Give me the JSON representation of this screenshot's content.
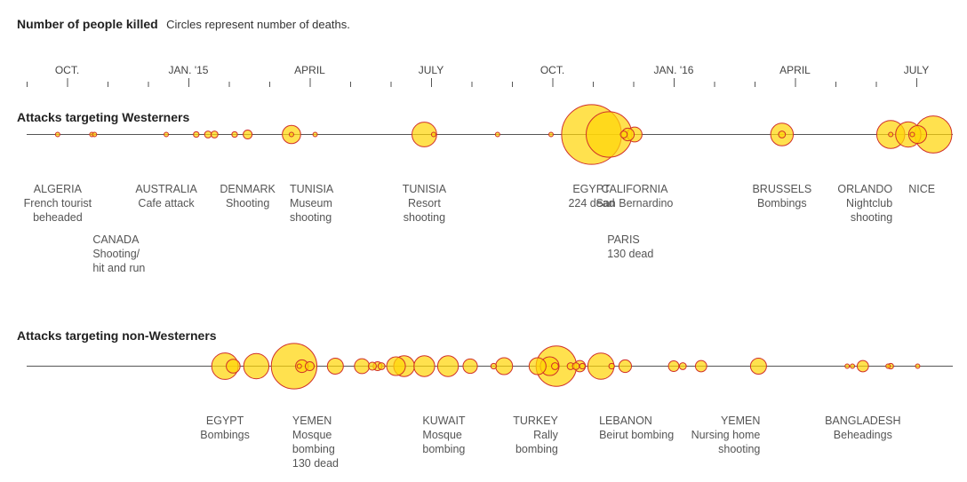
{
  "chart_data": {
    "type": "timeline-bubble",
    "title": "Number of people killed",
    "subtitle": "Circles represent number of deaths.",
    "axis": {
      "start_month": "2014-09",
      "end_month": "2016-07",
      "labels": [
        {
          "month": "2014-10",
          "text": "OCT."
        },
        {
          "month": "2015-01",
          "text": "JAN. '15"
        },
        {
          "month": "2015-04",
          "text": "APRIL"
        },
        {
          "month": "2015-07",
          "text": "JULY"
        },
        {
          "month": "2015-10",
          "text": "OCT."
        },
        {
          "month": "2016-01",
          "text": "JAN. '16"
        },
        {
          "month": "2016-04",
          "text": "APRIL"
        },
        {
          "month": "2016-07",
          "text": "JULY"
        }
      ]
    },
    "series": [
      {
        "name": "Attacks targeting Westerners",
        "events": [
          {
            "date": "2014-09-24",
            "deaths": 1
          },
          {
            "date": "2014-10-20",
            "deaths": 1
          },
          {
            "date": "2014-10-22",
            "deaths": 1
          },
          {
            "date": "2014-12-15",
            "deaths": 1
          },
          {
            "date": "2015-01-07",
            "deaths": 2
          },
          {
            "date": "2015-01-16",
            "deaths": 3
          },
          {
            "date": "2015-01-21",
            "deaths": 3
          },
          {
            "date": "2015-02-05",
            "deaths": 2
          },
          {
            "date": "2015-02-14",
            "deaths": 5
          },
          {
            "date": "2015-03-18",
            "deaths": 1
          },
          {
            "date": "2015-03-18",
            "deaths": 21
          },
          {
            "date": "2015-04-05",
            "deaths": 1
          },
          {
            "date": "2015-06-26",
            "deaths": 38
          },
          {
            "date": "2015-07-03",
            "deaths": 1
          },
          {
            "date": "2015-08-21",
            "deaths": 1
          },
          {
            "date": "2015-09-30",
            "deaths": 1
          },
          {
            "date": "2015-10-31",
            "deaths": 224
          },
          {
            "date": "2015-11-13",
            "deaths": 130
          },
          {
            "date": "2015-11-24",
            "deaths": 3
          },
          {
            "date": "2015-11-27",
            "deaths": 10
          },
          {
            "date": "2015-12-02",
            "deaths": 14
          },
          {
            "date": "2016-03-22",
            "deaths": 32
          },
          {
            "date": "2016-03-22",
            "deaths": 3
          },
          {
            "date": "2016-06-12",
            "deaths": 49
          },
          {
            "date": "2016-06-12",
            "deaths": 1
          },
          {
            "date": "2016-06-25",
            "deaths": 40
          },
          {
            "date": "2016-06-28",
            "deaths": 1
          },
          {
            "date": "2016-07-02",
            "deaths": 20
          },
          {
            "date": "2016-07-14",
            "deaths": 86
          }
        ],
        "annotations": [
          {
            "date": "2014-09-24",
            "lines": [
              "ALGERIA",
              "French tourist",
              "beheaded"
            ],
            "row": 0,
            "align": "middle"
          },
          {
            "date": "2014-10-22",
            "lines": [
              "CANADA",
              "Shooting/",
              "hit and run"
            ],
            "row": 1,
            "align": "start"
          },
          {
            "date": "2014-12-15",
            "lines": [
              "AUSTRALIA",
              "Cafe attack"
            ],
            "row": 0,
            "align": "middle"
          },
          {
            "date": "2015-02-14",
            "lines": [
              "DENMARK",
              "Shooting"
            ],
            "row": 0,
            "align": "middle"
          },
          {
            "date": "2015-03-18",
            "lines": [
              "TUNISIA",
              "Museum",
              "shooting"
            ],
            "row": 0,
            "align": "start"
          },
          {
            "date": "2015-06-26",
            "lines": [
              "TUNISIA",
              "Resort",
              "shooting"
            ],
            "row": 0,
            "align": "middle"
          },
          {
            "date": "2015-10-31",
            "lines": [
              "EGYPT",
              "224 dead"
            ],
            "row": 0,
            "align": "middle"
          },
          {
            "date": "2015-11-13",
            "lines": [
              "PARIS",
              "130 dead"
            ],
            "row": 1,
            "align": "start"
          },
          {
            "date": "2015-12-02",
            "lines": [
              "CALIFORNIA",
              "San Bernardino"
            ],
            "row": 0,
            "align": "middle"
          },
          {
            "date": "2016-03-22",
            "lines": [
              "BRUSSELS",
              "Bombings"
            ],
            "row": 0,
            "align": "middle"
          },
          {
            "date": "2016-06-12",
            "lines": [
              "ORLANDO",
              "Nightclub",
              "shooting"
            ],
            "row": 0,
            "align": "end"
          },
          {
            "date": "2016-07-14",
            "lines": [
              "NICE"
            ],
            "row": 0,
            "align": "end"
          }
        ]
      },
      {
        "name": "Attacks targeting non-Westerners",
        "events": [
          {
            "date": "2015-01-29",
            "deaths": 44
          },
          {
            "date": "2015-02-04",
            "deaths": 12
          },
          {
            "date": "2015-02-20",
            "deaths": 40
          },
          {
            "date": "2015-03-20",
            "deaths": 130
          },
          {
            "date": "2015-03-24",
            "deaths": 1
          },
          {
            "date": "2015-03-26",
            "deaths": 10
          },
          {
            "date": "2015-04-01",
            "deaths": 5
          },
          {
            "date": "2015-04-20",
            "deaths": 16
          },
          {
            "date": "2015-05-10",
            "deaths": 14
          },
          {
            "date": "2015-05-18",
            "deaths": 4
          },
          {
            "date": "2015-05-22",
            "deaths": 5
          },
          {
            "date": "2015-05-25",
            "deaths": 3
          },
          {
            "date": "2015-06-05",
            "deaths": 22
          },
          {
            "date": "2015-06-11",
            "deaths": 27
          },
          {
            "date": "2015-06-26",
            "deaths": 27
          },
          {
            "date": "2015-07-14",
            "deaths": 27
          },
          {
            "date": "2015-07-31",
            "deaths": 13
          },
          {
            "date": "2015-08-18",
            "deaths": 2
          },
          {
            "date": "2015-08-26",
            "deaths": 18
          },
          {
            "date": "2015-09-20",
            "deaths": 18
          },
          {
            "date": "2015-09-29",
            "deaths": 22
          },
          {
            "date": "2015-10-03",
            "deaths": 3
          },
          {
            "date": "2015-10-04",
            "deaths": 102
          },
          {
            "date": "2015-10-15",
            "deaths": 3
          },
          {
            "date": "2015-10-19",
            "deaths": 3
          },
          {
            "date": "2015-10-22",
            "deaths": 8
          },
          {
            "date": "2015-10-24",
            "deaths": 2
          },
          {
            "date": "2015-11-07",
            "deaths": 43
          },
          {
            "date": "2015-11-15",
            "deaths": 2
          },
          {
            "date": "2015-11-25",
            "deaths": 10
          },
          {
            "date": "2016-01-01",
            "deaths": 7
          },
          {
            "date": "2016-01-08",
            "deaths": 3
          },
          {
            "date": "2016-01-22",
            "deaths": 8
          },
          {
            "date": "2016-03-04",
            "deaths": 16
          },
          {
            "date": "2016-05-10",
            "deaths": 1
          },
          {
            "date": "2016-05-14",
            "deaths": 1
          },
          {
            "date": "2016-05-22",
            "deaths": 8
          },
          {
            "date": "2016-06-10",
            "deaths": 1
          },
          {
            "date": "2016-06-12",
            "deaths": 2
          },
          {
            "date": "2016-07-02",
            "deaths": 1
          }
        ],
        "annotations": [
          {
            "date": "2015-01-29",
            "lines": [
              "EGYPT",
              "Bombings"
            ],
            "row": 0,
            "align": "middle"
          },
          {
            "date": "2015-03-20",
            "lines": [
              "YEMEN",
              "Mosque",
              "bombing",
              "130 dead"
            ],
            "row": 0,
            "align": "start"
          },
          {
            "date": "2015-06-26",
            "lines": [
              "KUWAIT",
              "Mosque",
              "bombing"
            ],
            "row": 0,
            "align": "start"
          },
          {
            "date": "2015-10-04",
            "lines": [
              "TURKEY",
              "Rally",
              "bombing"
            ],
            "row": 0,
            "align": "end"
          },
          {
            "date": "2015-11-07",
            "lines": [
              "LEBANON",
              "Beirut bombing"
            ],
            "row": 0,
            "align": "start"
          },
          {
            "date": "2016-03-04",
            "lines": [
              "YEMEN",
              "Nursing home",
              "shooting"
            ],
            "row": 0,
            "align": "end"
          },
          {
            "date": "2016-05-22",
            "lines": [
              "BANGLADESH",
              "Beheadings"
            ],
            "row": 0,
            "align": "middle"
          }
        ]
      }
    ]
  }
}
